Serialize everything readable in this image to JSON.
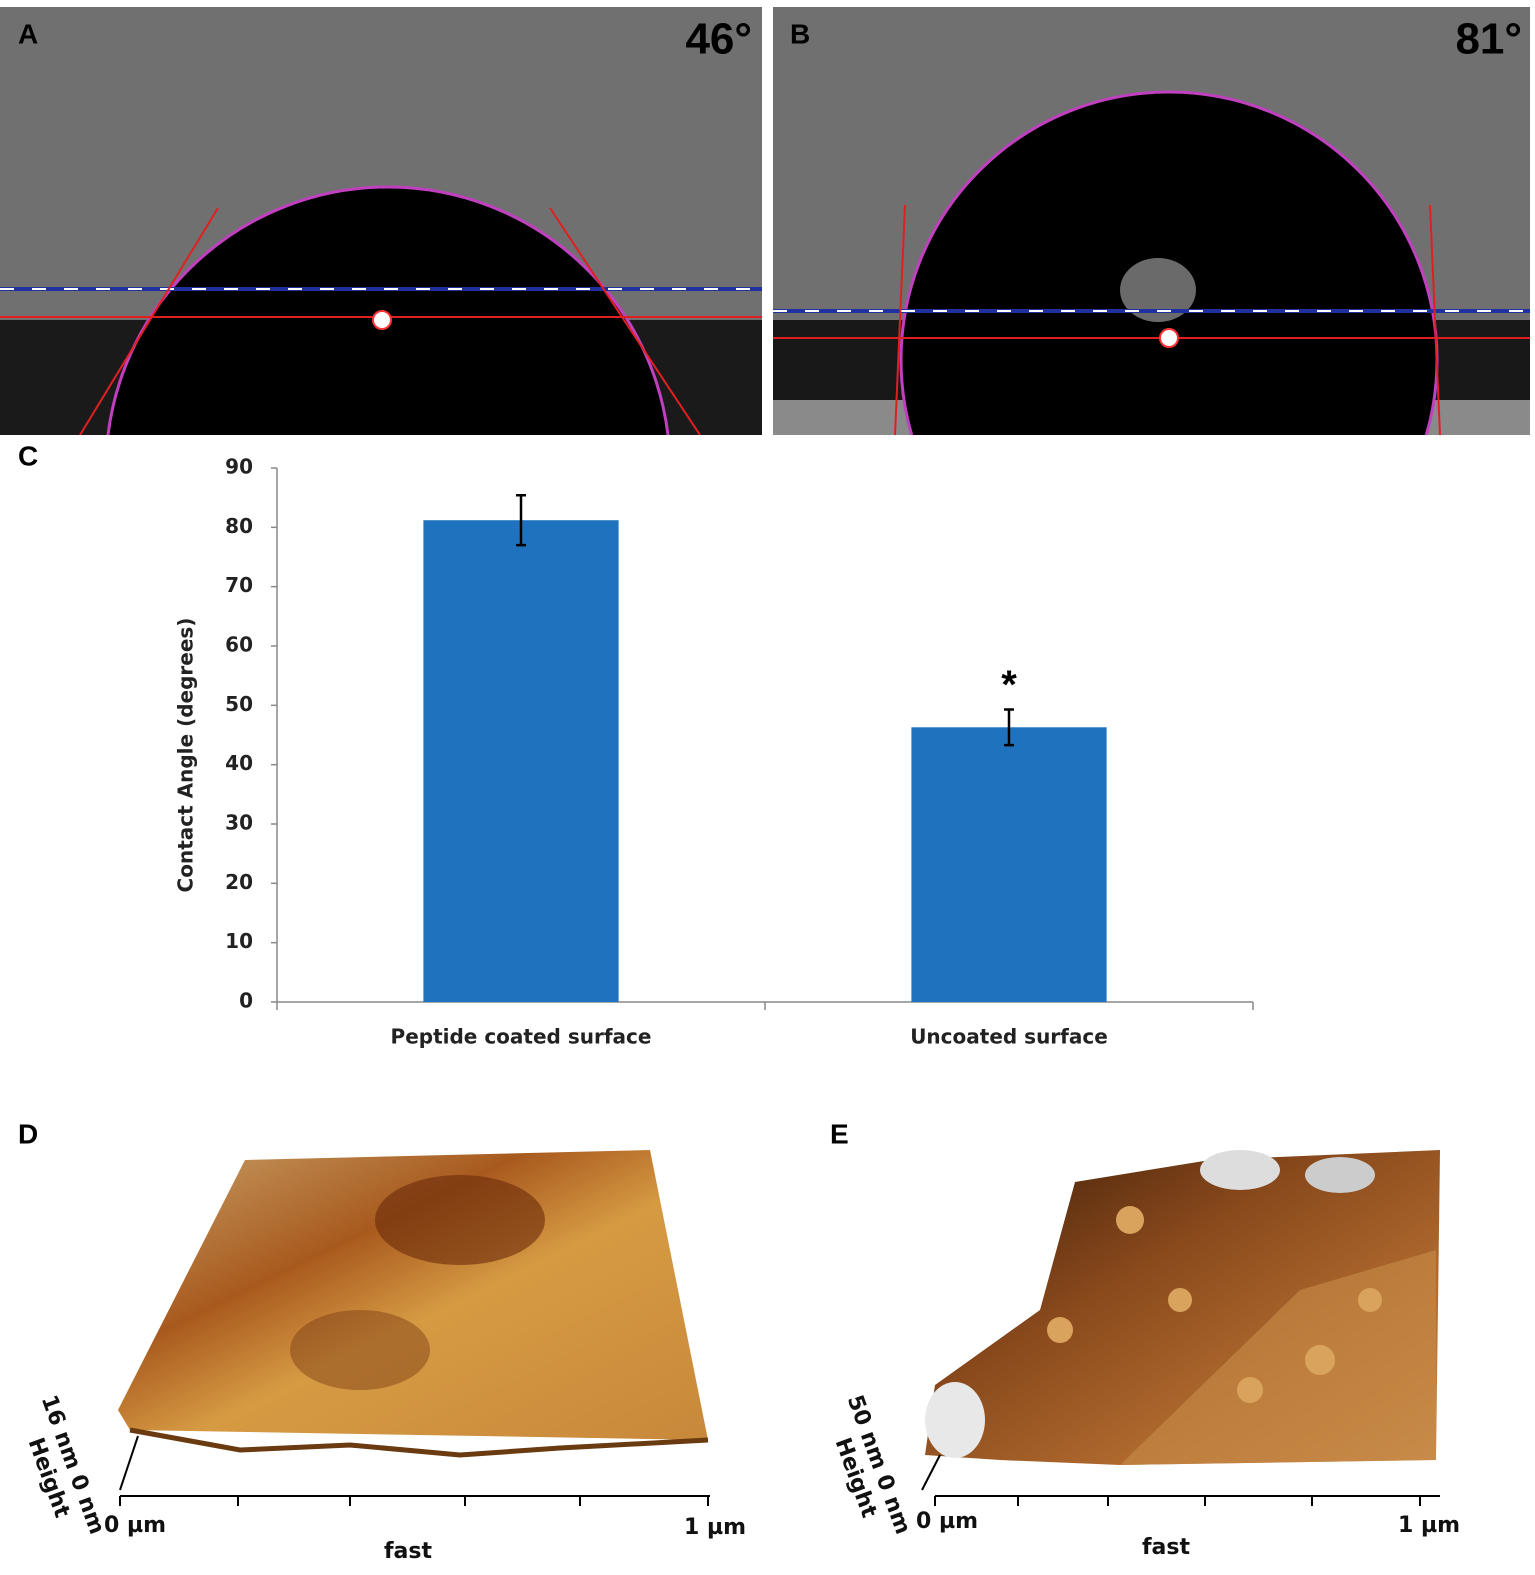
{
  "panel_a": {
    "label": "A",
    "angle_label": "46°"
  },
  "panel_b": {
    "label": "B",
    "angle_label": "81°"
  },
  "panel_c": {
    "label": "C"
  },
  "panel_d": {
    "label": "D",
    "height_scale": "16 nm 0 nm",
    "height_label": "Height",
    "x_start": "0 µm",
    "x_end": "1 µm",
    "x_label": "fast"
  },
  "panel_e": {
    "label": "E",
    "height_scale": "50 nm 0 nm",
    "height_label": "Height",
    "x_start": "0 µm",
    "x_end": "1 µm",
    "x_label": "fast"
  },
  "chart_data": {
    "type": "bar",
    "y_label": "Contact Angle (degrees)",
    "categories": [
      "Peptide coated surface",
      "Uncoated surface"
    ],
    "values": [
      81.2,
      46.3
    ],
    "errors": [
      4.2,
      3.0
    ],
    "significance_marks": [
      null,
      "*"
    ],
    "color": "#1f72be",
    "ylim": [
      0,
      90
    ],
    "yticks": [
      0,
      10,
      20,
      30,
      40,
      50,
      60,
      70,
      80,
      90
    ],
    "grid": false
  }
}
